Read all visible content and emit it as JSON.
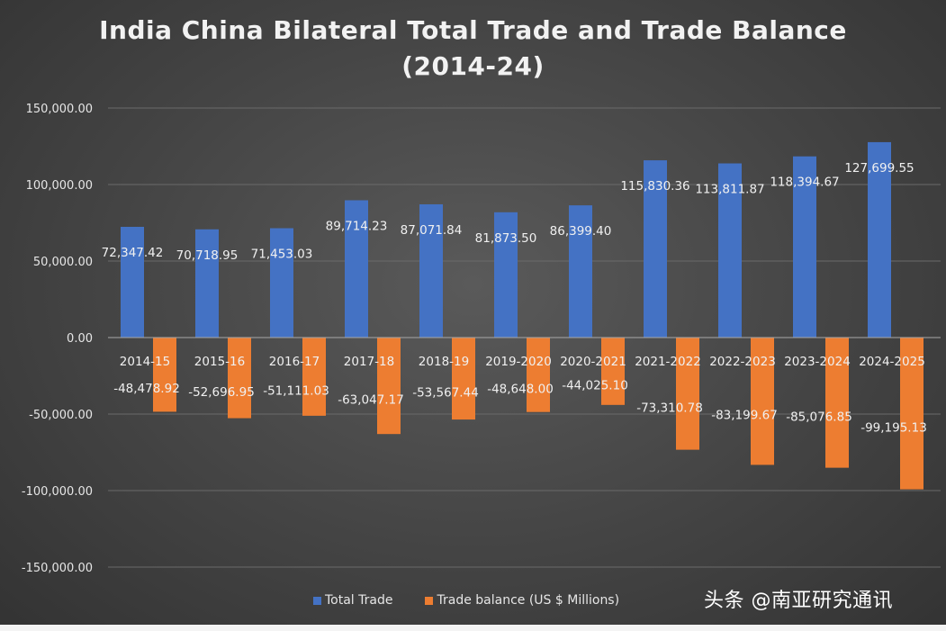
{
  "chart_data": {
    "type": "bar",
    "title_line1": "India China Bilateral Total Trade and Trade Balance",
    "title_line2": "(2014-24)",
    "categories": [
      "2014-15",
      "2015-16",
      "2016-17",
      "2017-18",
      "2018-19",
      "2019-2020",
      "2020-2021",
      "2021-2022",
      "2022-2023",
      "2023-2024",
      "2024-2025"
    ],
    "series": [
      {
        "name": "Total Trade",
        "color": "#4472c4",
        "values": [
          72347.42,
          70718.95,
          71453.03,
          89714.23,
          87071.84,
          81873.5,
          86399.4,
          115830.36,
          113811.87,
          118394.67,
          127699.55
        ],
        "labels": [
          "72,347.42",
          "70,718.95",
          "71,453.03",
          "89,714.23",
          "87,071.84",
          "81,873.50",
          "86,399.40",
          "115,830.36",
          "113,811.87",
          "118,394.67",
          "127,699.55"
        ]
      },
      {
        "name": "Trade balance (US $ Millions)",
        "color": "#ed7d31",
        "values": [
          -48478.92,
          -52696.95,
          -51111.03,
          -63047.17,
          -53567.44,
          -48648.0,
          -44025.1,
          -73310.78,
          -83199.67,
          -85076.85,
          -99195.13
        ],
        "labels": [
          "-48,478.92",
          "-52,696.95",
          "-51,111.03",
          "-63,047.17",
          "-53,567.44",
          "-48,648.00",
          "-44,025.10",
          "-73,310.78",
          "-83,199.67",
          "-85,076.85",
          "-99,195.13"
        ]
      }
    ],
    "ylim": [
      -150000,
      150000
    ],
    "y_ticks": [
      150000,
      100000,
      50000,
      0,
      -50000,
      -100000,
      -150000
    ],
    "y_tick_labels": [
      "150,000.00",
      "100,000.00",
      "50,000.00",
      "0.00",
      "-50,000.00",
      "-100,000.00",
      "-150,000.00"
    ],
    "grid": true,
    "legend_position": "bottom"
  },
  "watermark": "头条 @南亚研究通讯"
}
